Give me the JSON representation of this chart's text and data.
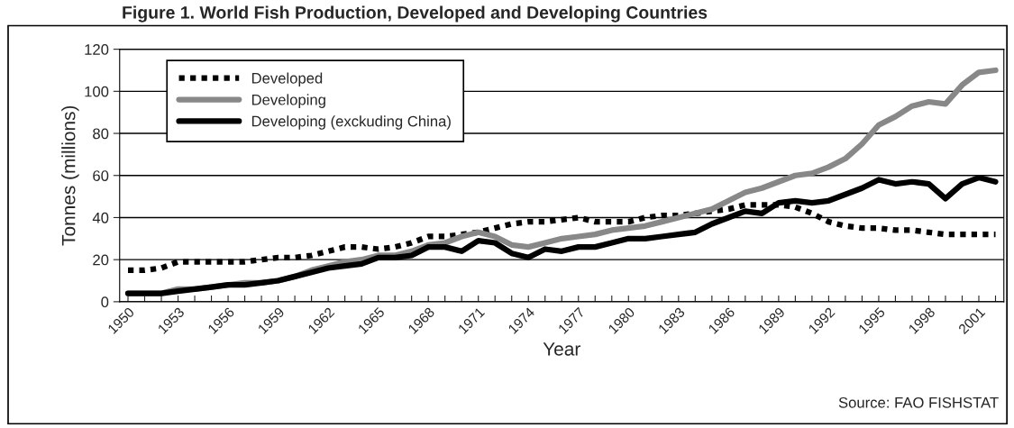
{
  "chart_data": {
    "type": "line",
    "title": "Figure 1. World Fish Production, Developed and Developing Countries",
    "xlabel": "Year",
    "ylabel": "Tonnes (millions)",
    "categories": [
      "1950",
      null,
      null,
      "1953",
      null,
      null,
      "1956",
      null,
      null,
      "1959",
      null,
      null,
      "1962",
      null,
      null,
      "1965",
      null,
      null,
      "1968",
      null,
      null,
      "1971",
      null,
      null,
      "1974",
      null,
      null,
      "1977",
      null,
      null,
      "1980",
      null,
      null,
      "1983",
      null,
      null,
      "1986",
      null,
      null,
      "1989",
      null,
      null,
      "1992",
      null,
      null,
      "1995",
      null,
      null,
      "1998",
      null,
      null,
      "2001",
      null
    ],
    "series": [
      {
        "name": "Developed",
        "color": "#000000",
        "line_style": "dotted",
        "values": [
          15,
          15,
          16,
          19,
          19,
          19,
          19,
          19,
          20,
          21,
          21,
          22,
          24,
          26,
          26,
          25,
          26,
          28,
          31,
          31,
          32,
          33,
          35,
          37,
          38,
          38,
          39,
          40,
          38,
          38,
          38,
          40,
          41,
          41,
          42,
          43,
          44,
          46,
          46,
          46,
          45,
          42,
          38,
          36,
          35,
          35,
          34,
          34,
          33,
          32,
          32,
          32,
          32
        ]
      },
      {
        "name": "Developing",
        "color": "#888888",
        "line_style": "solid",
        "values": [
          4,
          4,
          4,
          6,
          6,
          7,
          8,
          9,
          9,
          10,
          12,
          15,
          17,
          19,
          20,
          22,
          22,
          24,
          27,
          28,
          31,
          33,
          31,
          27,
          26,
          28,
          30,
          31,
          32,
          34,
          35,
          36,
          38,
          40,
          42,
          44,
          48,
          52,
          54,
          57,
          60,
          61,
          64,
          68,
          75,
          84,
          88,
          93,
          95,
          94,
          103,
          109,
          110
        ]
      },
      {
        "name": "Developing (exckuding China)",
        "color": "#000000",
        "line_style": "solid",
        "values": [
          4,
          4,
          4,
          5,
          6,
          7,
          8,
          8,
          9,
          10,
          12,
          14,
          16,
          17,
          18,
          21,
          21,
          22,
          26,
          26,
          24,
          29,
          28,
          23,
          21,
          25,
          24,
          26,
          26,
          28,
          30,
          30,
          31,
          32,
          33,
          37,
          40,
          43,
          42,
          47,
          48,
          47,
          48,
          51,
          54,
          58,
          56,
          57,
          56,
          49,
          56,
          59,
          57
        ]
      }
    ],
    "ylim": [
      0,
      120
    ],
    "yticks": [
      0,
      20,
      40,
      60,
      80,
      100,
      120
    ],
    "grid": "y",
    "legend": "top left",
    "annotations": [
      "Source: FAO FISHSTAT"
    ]
  }
}
